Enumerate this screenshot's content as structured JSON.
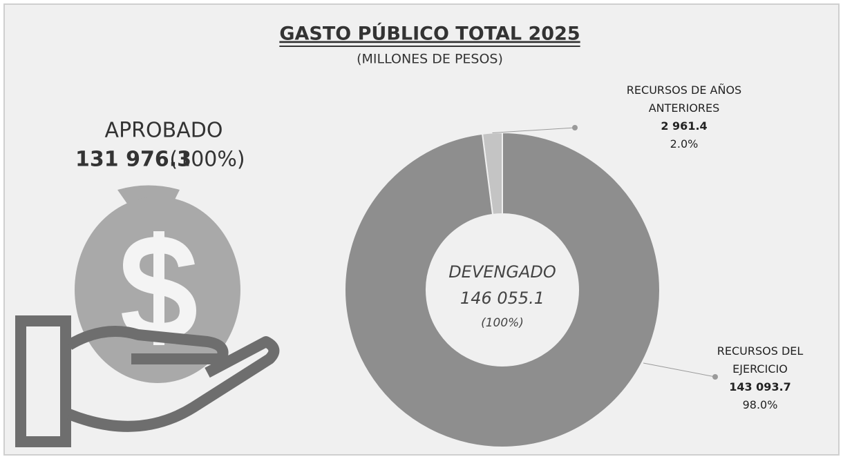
{
  "chart_data": {
    "type": "donut",
    "title": "GASTO PÚBLICO TOTAL 2025",
    "subtitle": "(MILLONES DE PESOS)",
    "categories": [
      "RECURSOS DE AÑOS ANTERIORES",
      "RECURSOS DEL EJERCICIO"
    ],
    "values": [
      2961.4,
      143093.7
    ],
    "value_labels": [
      "2 961.4",
      "143 093.7"
    ],
    "percents": [
      2,
      98
    ],
    "percent_labels": [
      "2.0%",
      "98.0%"
    ],
    "colors": [
      "#c4c4c4",
      "#8e8e8e"
    ],
    "center": {
      "label": "DEVENGADO",
      "value": 146055.1,
      "value_label": "146 055.1",
      "percent": 100,
      "percent_label": "(100%)"
    },
    "approved": {
      "label": "APROBADO",
      "value": 131976.3,
      "value_label": "131 976.3",
      "percent": 100,
      "percent_label": "(100%)"
    }
  }
}
